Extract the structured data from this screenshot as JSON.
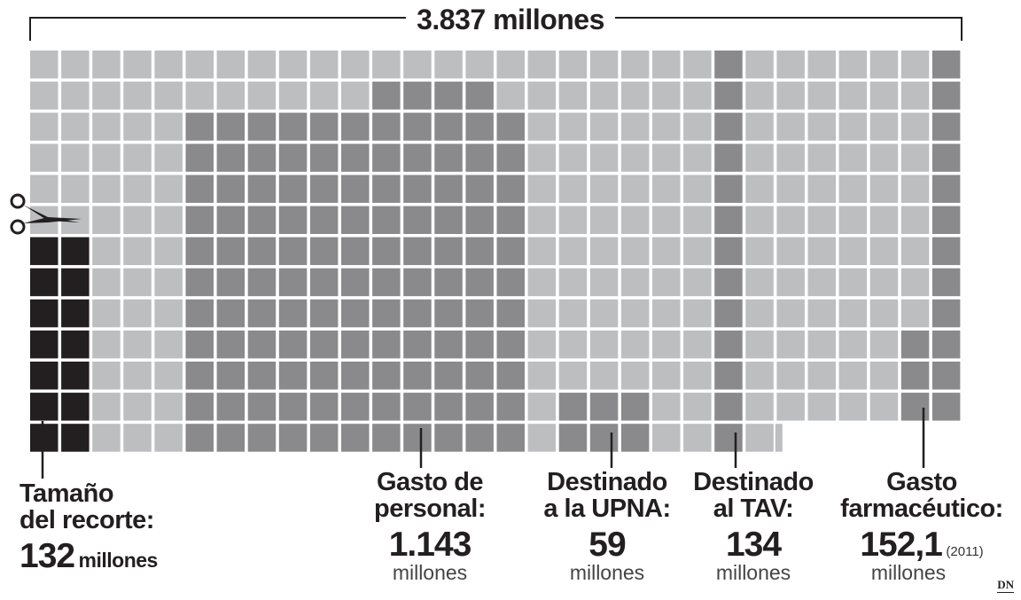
{
  "header": {
    "title": "3.837 millones"
  },
  "chart_data": {
    "type": "waffle",
    "title": "3.837 millones",
    "grid": {
      "columns": 30,
      "rows": 13
    },
    "segments": [
      {
        "key": "recorte",
        "label": "Tamaño del recorte:",
        "value": "132",
        "unit": "millones",
        "color": "#231f20"
      },
      {
        "key": "personal",
        "label": "Gasto de personal:",
        "value": "1.143",
        "unit": "millones",
        "color": "#8a8a8c"
      },
      {
        "key": "upna",
        "label": "Destinado a la UPNA:",
        "value": "59",
        "unit": "millones",
        "color": "#8a8a8c"
      },
      {
        "key": "tav",
        "label": "Destinado al TAV:",
        "value": "134",
        "unit": "millones",
        "color": "#8a8a8c"
      },
      {
        "key": "farma",
        "label": "Gasto farmacéutico:",
        "value": "152,1",
        "unit": "millones",
        "note": "(2011)",
        "color": "#8a8a8c"
      }
    ],
    "colors": {
      "background_square": "#bcbec0",
      "highlight_square": "#8a8a8c",
      "cut_square": "#231f20"
    }
  },
  "labels": {
    "recorte": {
      "line1": "Tamaño",
      "line2": "del recorte:",
      "value": "132",
      "unit": "millones"
    },
    "personal": {
      "line1": "Gasto de",
      "line2": "personal:",
      "value": "1.143",
      "unit": "millones"
    },
    "upna": {
      "line1": "Destinado",
      "line2": "a la UPNA:",
      "value": "59",
      "unit": "millones"
    },
    "tav": {
      "line1": "Destinado",
      "line2": "al TAV:",
      "value": "134",
      "unit": "millones"
    },
    "farma": {
      "line1": "Gasto",
      "line2": "farmacéutico:",
      "value": "152,1",
      "note": "(2011)",
      "unit": "millones"
    }
  },
  "credit": "DN",
  "icons": {
    "cut": "scissors-icon"
  }
}
